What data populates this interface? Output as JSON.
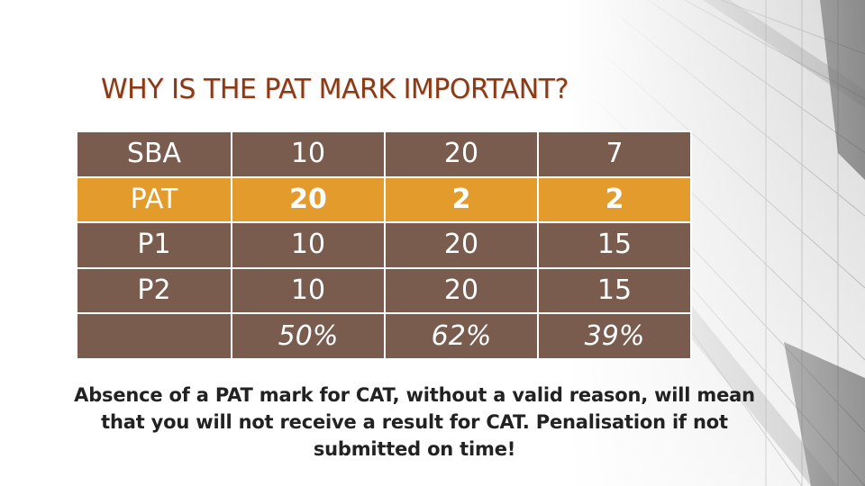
{
  "title": "WHY IS THE PAT MARK IMPORTANT?",
  "colors": {
    "title": "#8b3a14",
    "row_default": "#7a5c4f",
    "row_highlight": "#e39b2b",
    "cell_text": "#ffffff",
    "note_text": "#222222"
  },
  "table": {
    "rows": [
      {
        "label": "SBA",
        "cells": [
          "10",
          "20",
          "7"
        ]
      },
      {
        "label": "PAT",
        "cells": [
          "20",
          "2",
          "2"
        ]
      },
      {
        "label": "P1",
        "cells": [
          "10",
          "20",
          "15"
        ]
      },
      {
        "label": "P2",
        "cells": [
          "10",
          "20",
          "15"
        ]
      },
      {
        "label": "",
        "cells": [
          "50%",
          "62%",
          "39%"
        ]
      }
    ],
    "highlighted_row": "PAT"
  },
  "note": {
    "line1": "Absence of a PAT mark for CAT, without a valid reason, will mean",
    "line2": "that you will not receive a result for CAT. Penalisation if not",
    "line3": "submitted on time!"
  }
}
